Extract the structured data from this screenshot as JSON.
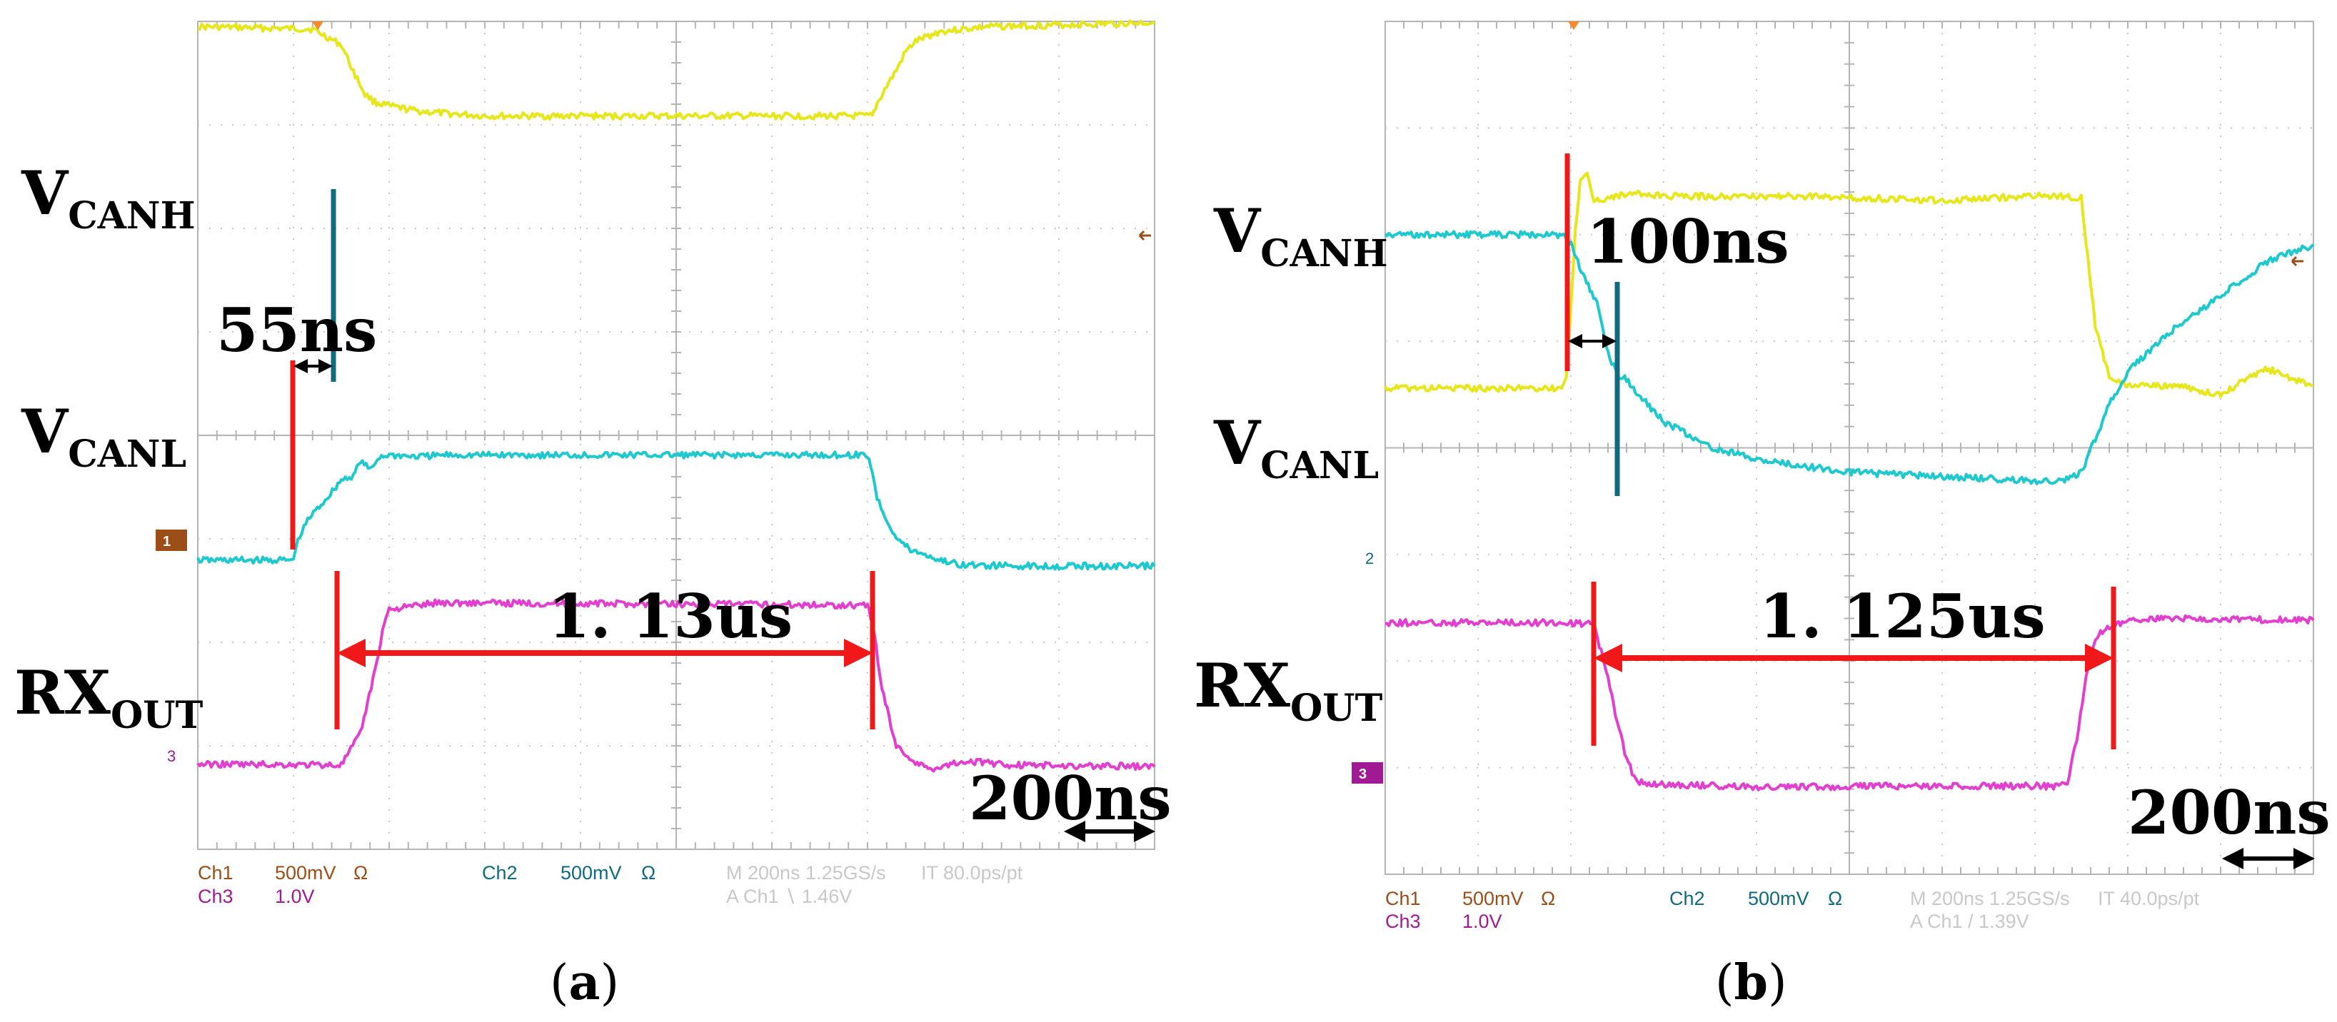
{
  "chart_data": [
    {
      "type": "line",
      "panel": "a",
      "x_unit": "ns",
      "xlim": [
        -400,
        1600
      ],
      "signals": [
        {
          "name": "V_CANH",
          "label_main": "V",
          "label_sub": "CANH",
          "color": "#e6e61a",
          "x": [
            -400,
            -160,
            -100,
            -75,
            -50,
            -30,
            0,
            60,
            120,
            200,
            500,
            800,
            1010,
            1020,
            1040,
            1060,
            1080,
            1100,
            1150,
            1250,
            1400,
            1600
          ],
          "y": [
            1.98,
            1.95,
            1.76,
            1.44,
            1.16,
            1.07,
            1.02,
            0.96,
            0.93,
            0.9,
            0.9,
            0.9,
            0.9,
            1.05,
            1.26,
            1.45,
            1.68,
            1.8,
            1.92,
            1.98,
            2.0,
            2.03
          ]
        },
        {
          "name": "V_CANL",
          "label_main": "V",
          "label_sub": "CANL",
          "color": "#1ec8cf",
          "x": [
            -400,
            -200,
            -195,
            -170,
            -130,
            -100,
            -75,
            -60,
            -40,
            -20,
            0,
            60,
            120,
            200,
            500,
            800,
            1000,
            1010,
            1020,
            1040,
            1060,
            1090,
            1120,
            1150,
            1200,
            1300,
            1600
          ],
          "y": [
            -0.37,
            -0.37,
            -0.2,
            0.12,
            0.38,
            0.6,
            0.65,
            0.83,
            0.72,
            0.88,
            0.9,
            0.88,
            0.9,
            0.9,
            0.9,
            0.9,
            0.9,
            0.7,
            0.38,
            0.12,
            -0.1,
            -0.25,
            -0.3,
            -0.37,
            -0.43,
            -0.44,
            -0.44
          ]
        },
        {
          "name": "RX_OUT",
          "label_main": "RX",
          "label_sub": "OUT",
          "color": "#e23ecf",
          "x": [
            -400,
            -100,
            -60,
            -30,
            -10,
            0,
            100,
            400,
            800,
            1000,
            1010,
            1030,
            1060,
            1100,
            1130,
            1200,
            1300,
            1600
          ],
          "y": [
            0.08,
            0.07,
            0.45,
            1.2,
            1.8,
            1.95,
            2.03,
            2.02,
            2.01,
            2.0,
            1.8,
            1.0,
            0.3,
            0.1,
            0.02,
            0.12,
            0.07,
            0.05
          ]
        }
      ],
      "annotations": [
        {
          "text": "55ns"
        },
        {
          "text": "1. 13us"
        },
        {
          "text": "200ns"
        }
      ],
      "scope_readout": {
        "ch1": "Ch1",
        "ch1_scale": "500mV",
        "ohm": "Ω",
        "ch2": "Ch2",
        "ch2_scale": "500mV",
        "ch3": "Ch3",
        "ch3_scale": "1.0V",
        "timebase": "M 200ns 1.25GS/s",
        "record": "IT 80.0ps/pt",
        "trigger": "A  Ch1  ∖  1.46V"
      },
      "channel_marker": "1",
      "ch3_tag": "3",
      "panel_label": "(a)"
    },
    {
      "type": "line",
      "panel": "b",
      "x_unit": "ns",
      "xlim": [
        -400,
        1600
      ],
      "signals": [
        {
          "name": "V_CANH",
          "label_main": "V",
          "label_sub": "CANH",
          "color": "#e6e61a",
          "x": [
            -400,
            -20,
            -10,
            0,
            10,
            20,
            35,
            50,
            80,
            120,
            200,
            500,
            800,
            1000,
            1060,
            1100,
            1110,
            1130,
            1160,
            1200,
            1300,
            1400,
            1500,
            1600
          ],
          "y": [
            -0.33,
            -0.33,
            -0.2,
            0.6,
            1.6,
            2.1,
            2.2,
            1.9,
            1.93,
            1.98,
            1.95,
            1.95,
            1.9,
            1.95,
            1.95,
            1.93,
            1.4,
            0.4,
            -0.2,
            -0.3,
            -0.3,
            -0.4,
            -0.1,
            -0.3
          ]
        },
        {
          "name": "V_CANL",
          "label_main": "V",
          "label_sub": "CANL",
          "color": "#1ec8cf",
          "x": [
            -400,
            -20,
            0,
            30,
            60,
            80,
            100,
            120,
            150,
            200,
            300,
            400,
            600,
            800,
            1000,
            1060,
            1100,
            1130,
            1160,
            1200,
            1300,
            1400,
            1500,
            1600
          ],
          "y": [
            0.62,
            0.62,
            0.5,
            0.1,
            -0.25,
            -0.8,
            -1.05,
            -1.1,
            -1.3,
            -1.6,
            -1.9,
            -2.05,
            -2.2,
            -2.25,
            -2.3,
            -2.3,
            -2.2,
            -1.8,
            -1.4,
            -1.0,
            -0.5,
            -0.1,
            0.3,
            0.5
          ]
        },
        {
          "name": "RX_OUT",
          "label_main": "RX",
          "label_sub": "OUT",
          "color": "#e23ecf",
          "x": [
            -400,
            0,
            50,
            80,
            100,
            120,
            140,
            160,
            200,
            400,
            700,
            900,
            1040,
            1070,
            1090,
            1110,
            1130,
            1160,
            1200,
            1300,
            1600
          ],
          "y": [
            1.97,
            1.97,
            1.95,
            1.3,
            0.8,
            0.35,
            0.1,
            0.05,
            0.05,
            0.02,
            0.03,
            0.03,
            0.03,
            0.08,
            0.6,
            1.3,
            1.8,
            1.92,
            2.0,
            2.02,
            2.0
          ]
        }
      ],
      "annotations": [
        {
          "text": "100ns"
        },
        {
          "text": "1. 125us"
        },
        {
          "text": "200ns"
        }
      ],
      "scope_readout": {
        "ch1": "Ch1",
        "ch1_scale": "500mV",
        "ohm": "Ω",
        "ch2": "Ch2",
        "ch2_scale": "500mV",
        "ch3": "Ch3",
        "ch3_scale": "1.0V",
        "timebase": "M 200ns 1.25GS/s",
        "record": "IT 40.0ps/pt",
        "trigger": "A  Ch1  /  1.39V"
      },
      "channel_marker": "2",
      "ch3_tag": "3",
      "panel_label": "(b)"
    }
  ]
}
